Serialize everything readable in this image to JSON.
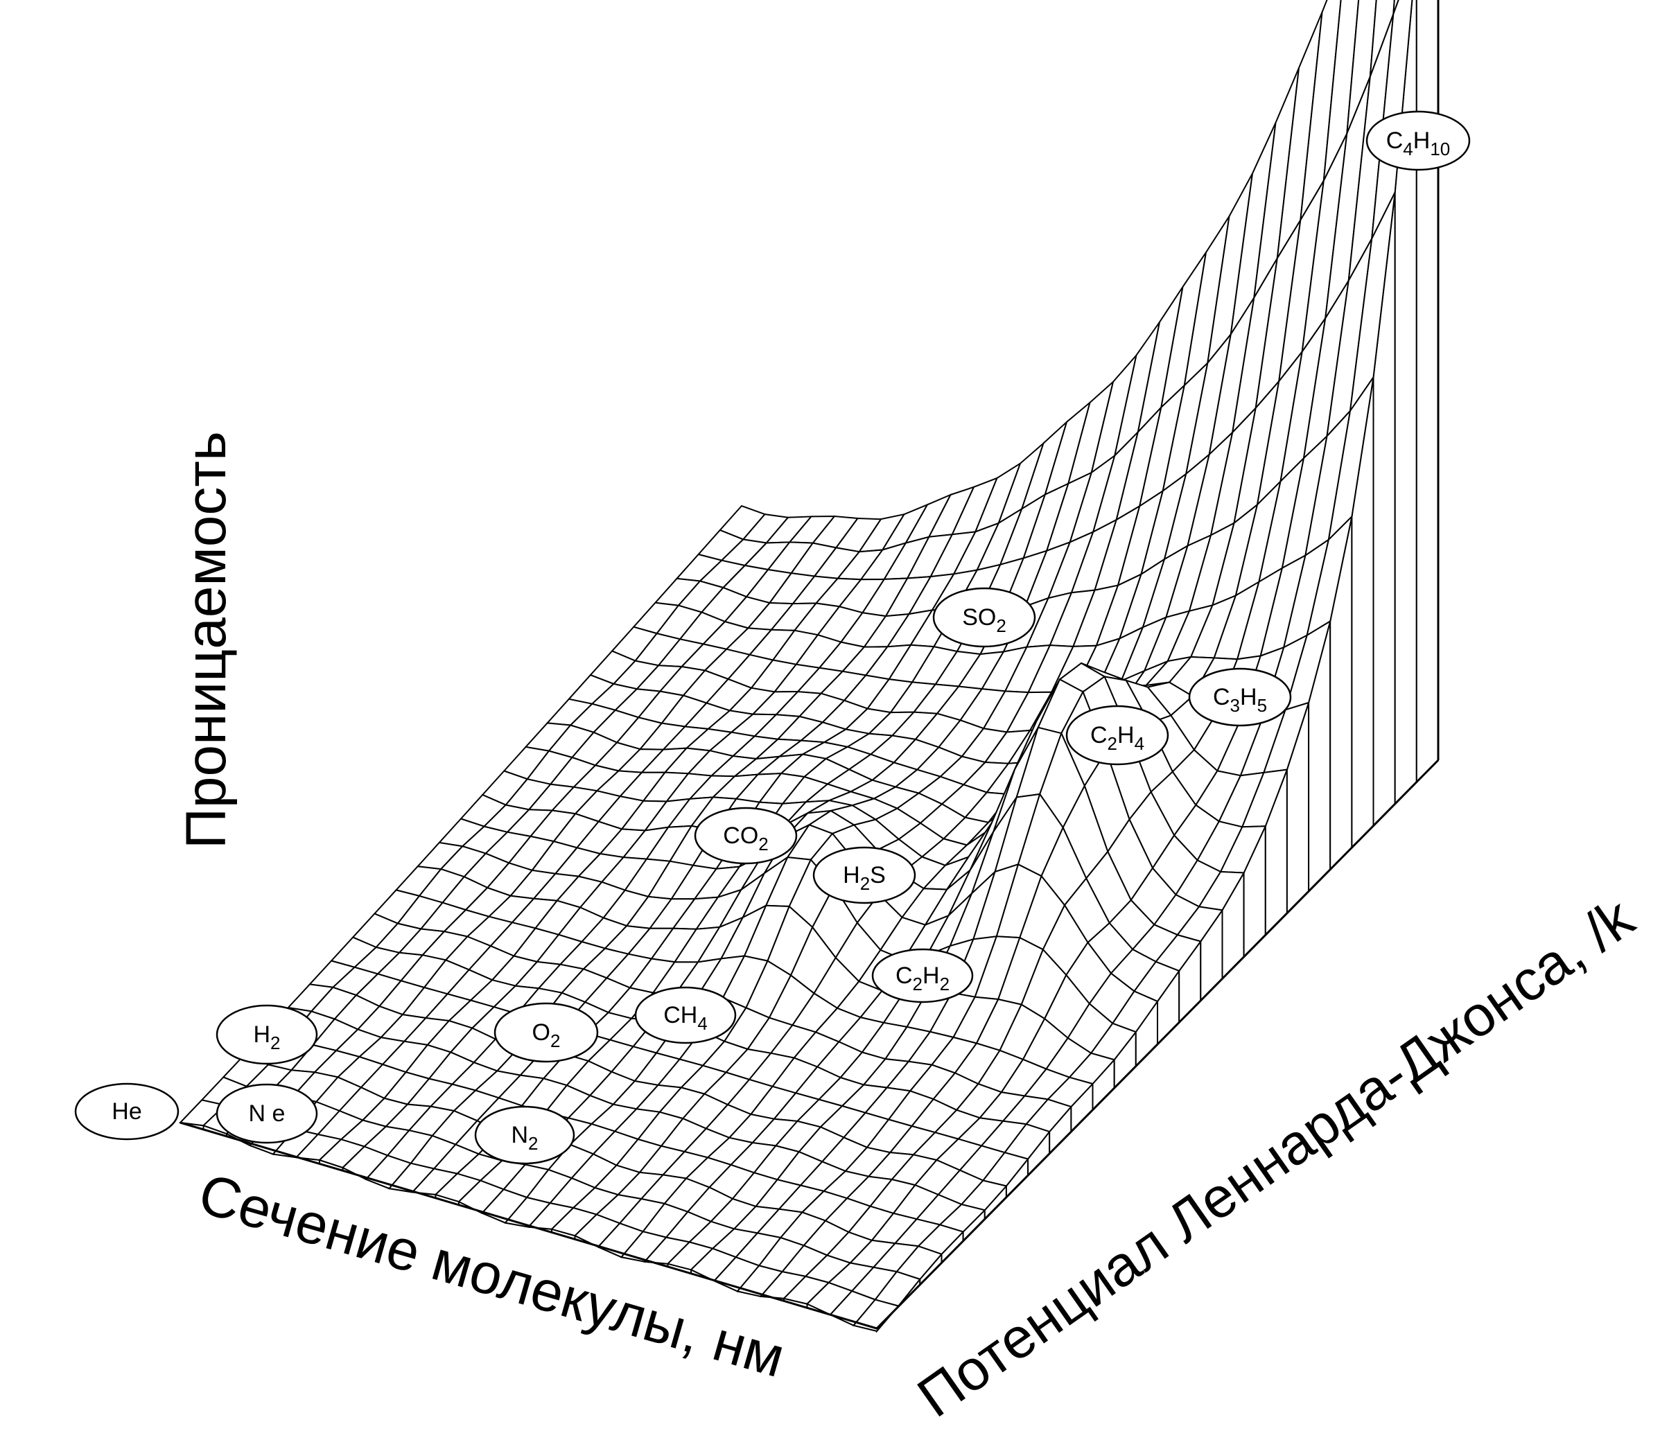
{
  "chart_data": {
    "type": "surface",
    "axes": {
      "z_label": "Проницаемость",
      "x_label": "Сечение молекулы, нм",
      "y_label": "Потенциал Леннарда-Джонса, /k"
    },
    "points": [
      {
        "id": "he",
        "parts": [
          [
            "He",
            false
          ]
        ]
      },
      {
        "id": "ne",
        "parts": [
          [
            "N e",
            false
          ]
        ]
      },
      {
        "id": "h2",
        "parts": [
          [
            "H",
            false
          ],
          [
            "2",
            true
          ]
        ]
      },
      {
        "id": "n2",
        "parts": [
          [
            "N",
            false
          ],
          [
            "2",
            true
          ]
        ]
      },
      {
        "id": "o2",
        "parts": [
          [
            "O",
            false
          ],
          [
            "2",
            true
          ]
        ]
      },
      {
        "id": "ch4",
        "parts": [
          [
            "CH",
            false
          ],
          [
            "4",
            true
          ]
        ]
      },
      {
        "id": "c2h2",
        "parts": [
          [
            "C",
            false
          ],
          [
            "2",
            true
          ],
          [
            "H",
            false
          ],
          [
            "2",
            true
          ]
        ]
      },
      {
        "id": "co2",
        "parts": [
          [
            "CO",
            false
          ],
          [
            "2",
            true
          ]
        ]
      },
      {
        "id": "h2s",
        "parts": [
          [
            "H",
            false
          ],
          [
            "2",
            true
          ],
          [
            "S",
            false
          ]
        ]
      },
      {
        "id": "so2",
        "parts": [
          [
            "SO",
            false
          ],
          [
            "2",
            true
          ]
        ]
      },
      {
        "id": "c2h4",
        "parts": [
          [
            "C",
            false
          ],
          [
            "2",
            true
          ],
          [
            "H",
            false
          ],
          [
            "4",
            true
          ]
        ]
      },
      {
        "id": "c3h5",
        "parts": [
          [
            "C",
            false
          ],
          [
            "3",
            true
          ],
          [
            "H",
            false
          ],
          [
            "5",
            true
          ]
        ]
      },
      {
        "id": "c4h10",
        "parts": [
          [
            "C",
            false
          ],
          [
            "4",
            true
          ],
          [
            "H",
            false
          ],
          [
            "10",
            true
          ]
        ]
      }
    ],
    "colors": {
      "line": "#000000",
      "background": "#ffffff"
    }
  }
}
